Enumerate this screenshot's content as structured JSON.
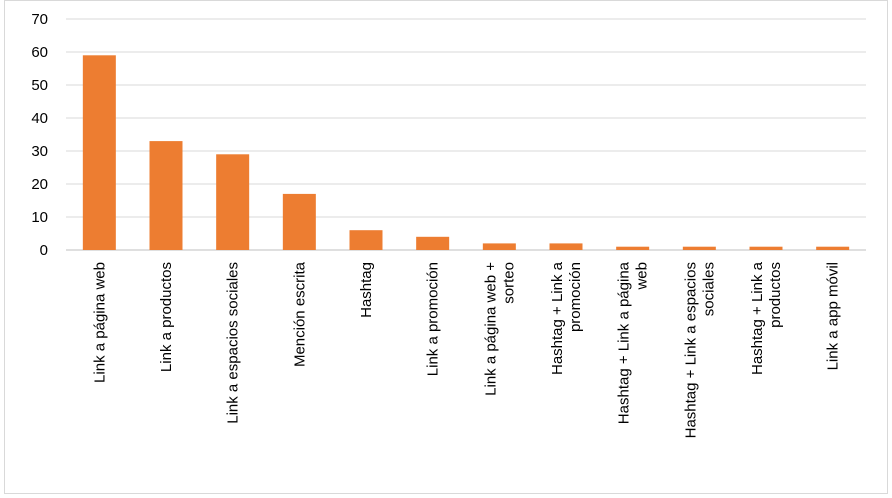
{
  "chart_data": {
    "type": "bar",
    "categories": [
      [
        "Link a página web"
      ],
      [
        "Link a productos"
      ],
      [
        "Link a espacios sociales"
      ],
      [
        "Mención escrita"
      ],
      [
        "Hashtag"
      ],
      [
        "Link a promoción"
      ],
      [
        "Link a página web +",
        "sorteo"
      ],
      [
        "Hashtag + Link a",
        "promoción"
      ],
      [
        "Hashtag + Link a página",
        "web"
      ],
      [
        "Hashtag + Link a espacios",
        "sociales"
      ],
      [
        "Hashtag + Link a",
        "productos"
      ],
      [
        "Link a app móvil"
      ]
    ],
    "values": [
      59,
      33,
      29,
      17,
      6,
      4,
      2,
      2,
      1,
      1,
      1,
      1
    ],
    "ylim": [
      0,
      70
    ],
    "yticks": [
      "0",
      "10",
      "20",
      "30",
      "40",
      "50",
      "60",
      "70"
    ],
    "grid": true,
    "bar_color": "#ed7d31",
    "grid_color": "#d9d9d9",
    "title": "",
    "xlabel": "",
    "ylabel": ""
  }
}
